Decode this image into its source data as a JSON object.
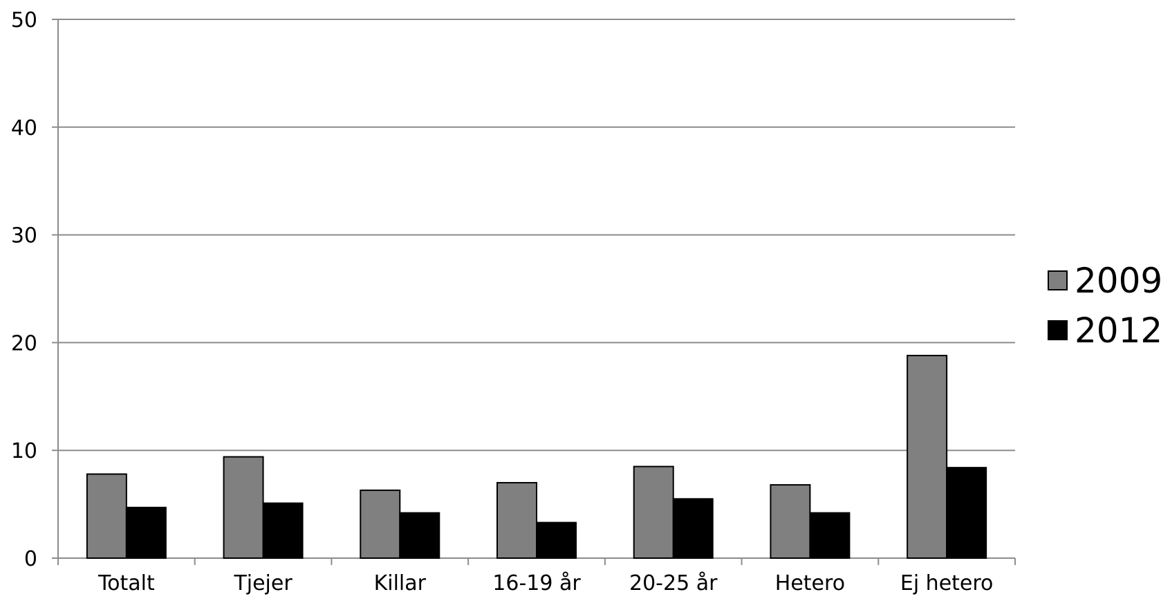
{
  "chart_data": {
    "type": "bar",
    "title": "",
    "xlabel": "",
    "ylabel": "",
    "categories": [
      "Totalt",
      "Tjejer",
      "Killar",
      "16-19 år",
      "20-25 år",
      "Hetero",
      "Ej hetero"
    ],
    "series": [
      {
        "name": "2009",
        "color": "#808080",
        "values": [
          7.8,
          9.4,
          6.3,
          7.0,
          8.5,
          6.8,
          18.8
        ]
      },
      {
        "name": "2012",
        "color": "#000000",
        "values": [
          4.7,
          5.1,
          4.2,
          3.3,
          5.5,
          4.2,
          8.4
        ]
      }
    ],
    "ylim": [
      0,
      50
    ],
    "yticks": [
      0,
      10,
      20,
      30,
      40,
      50
    ],
    "grid": true,
    "legend": "right"
  }
}
